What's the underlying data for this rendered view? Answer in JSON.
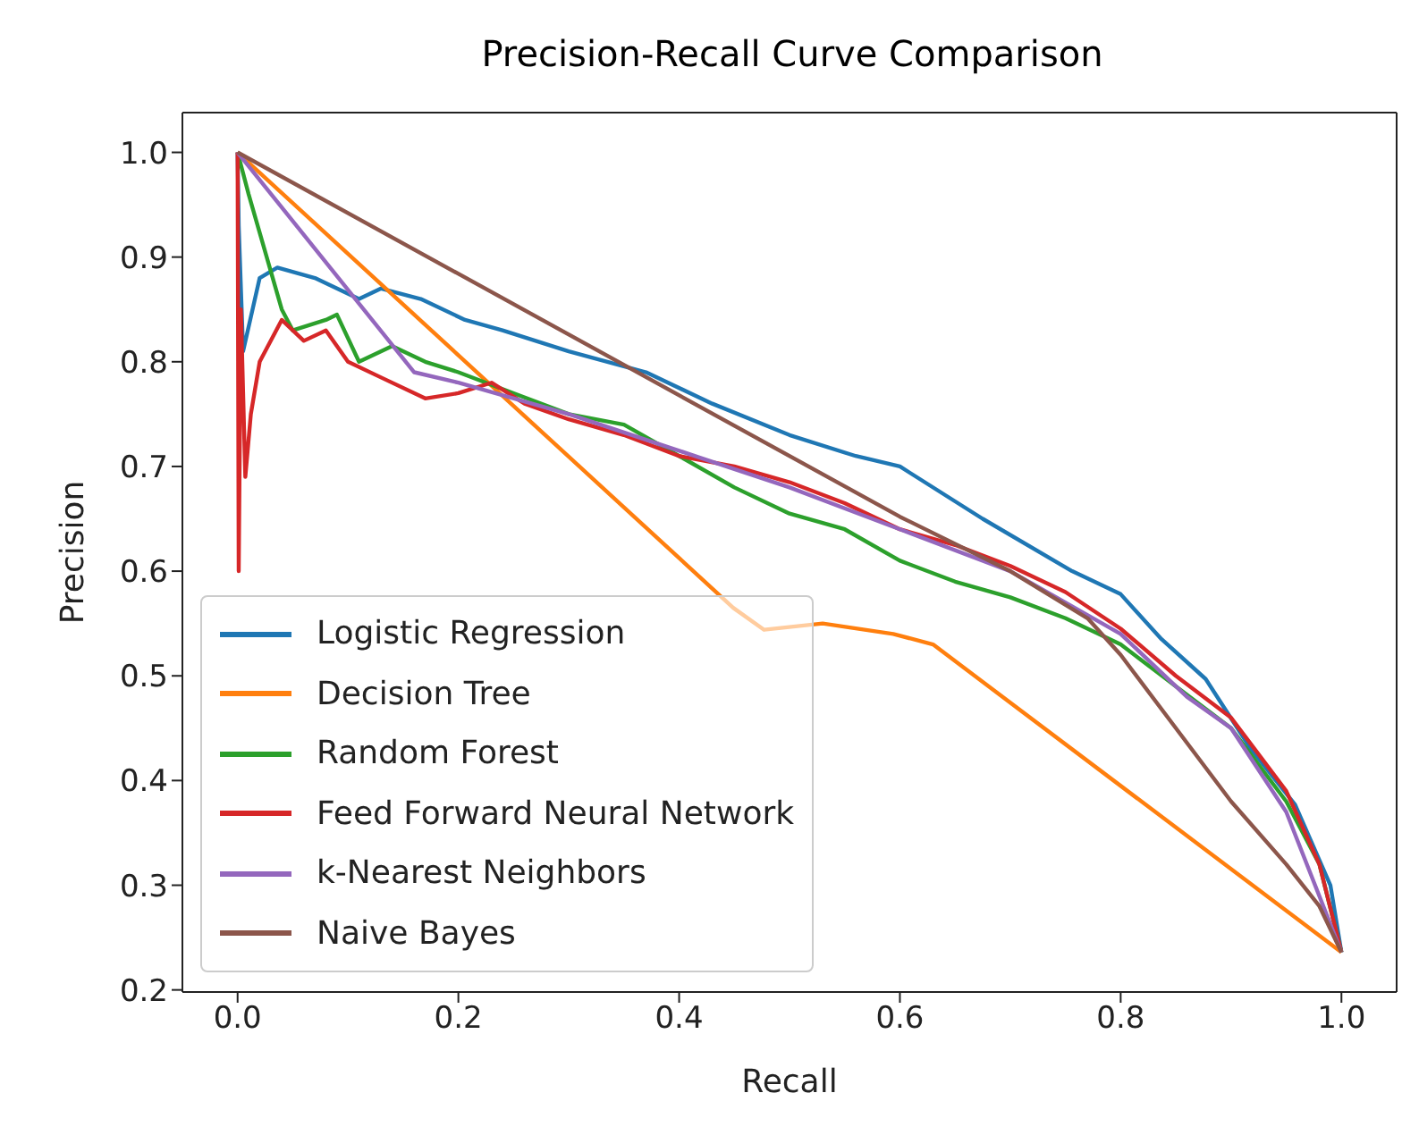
{
  "chart_data": {
    "type": "line",
    "title": "Precision-Recall Curve Comparison",
    "xlabel": "Recall",
    "ylabel": "Precision",
    "xlim": [
      -0.05,
      1.05
    ],
    "ylim": [
      0.198,
      1.038
    ],
    "xticks": [
      {
        "value": 0,
        "label": "0.0"
      },
      0.2,
      0.4,
      0.6,
      0.8,
      {
        "value": 1,
        "label": "1.0"
      }
    ],
    "yticks": [
      0.2,
      0.3,
      0.4,
      0.5,
      0.6,
      0.7,
      0.8,
      0.9,
      {
        "value": 1,
        "label": "1.0"
      }
    ],
    "grid": false,
    "legend": "bottom left",
    "marker": "none",
    "line_style": "solid",
    "series": [
      {
        "name": "Logistic Regression",
        "color": "#1f77b4",
        "x": [
          0,
          0.001,
          0.005,
          0.02,
          0.036,
          0.07,
          0.11,
          0.13,
          0.166,
          0.206,
          0.24,
          0.3,
          0.37,
          0.43,
          0.5,
          0.56,
          0.6,
          0.675,
          0.756,
          0.8,
          0.837,
          0.877,
          0.918,
          0.958,
          0.99,
          1.0
        ],
        "values": [
          1.0,
          0.93,
          0.81,
          0.88,
          0.89,
          0.88,
          0.86,
          0.87,
          0.86,
          0.84,
          0.83,
          0.81,
          0.79,
          0.76,
          0.73,
          0.71,
          0.7,
          0.65,
          0.6,
          0.578,
          0.535,
          0.497,
          0.43,
          0.377,
          0.3,
          0.236
        ]
      },
      {
        "name": "Decision Tree",
        "color": "#ff7f0e",
        "x": [
          0,
          0.449,
          0.477,
          0.53,
          0.594,
          0.63,
          1.0
        ],
        "values": [
          1.0,
          0.565,
          0.544,
          0.55,
          0.54,
          0.53,
          0.236
        ]
      },
      {
        "name": "Random Forest",
        "color": "#2ca02c",
        "x": [
          0,
          0.01,
          0.04,
          0.05,
          0.08,
          0.09,
          0.11,
          0.14,
          0.17,
          0.2,
          0.25,
          0.3,
          0.35,
          0.4,
          0.45,
          0.5,
          0.55,
          0.6,
          0.65,
          0.7,
          0.75,
          0.8,
          0.85,
          0.9,
          0.95,
          0.98,
          1.0
        ],
        "values": [
          1.0,
          0.96,
          0.85,
          0.83,
          0.84,
          0.845,
          0.8,
          0.815,
          0.8,
          0.79,
          0.77,
          0.75,
          0.74,
          0.71,
          0.68,
          0.655,
          0.64,
          0.61,
          0.59,
          0.575,
          0.555,
          0.53,
          0.49,
          0.45,
          0.38,
          0.32,
          0.236
        ]
      },
      {
        "name": "Feed Forward Neural Network",
        "color": "#d62728",
        "x": [
          0,
          0.001,
          0.003,
          0.007,
          0.012,
          0.02,
          0.04,
          0.06,
          0.08,
          0.1,
          0.13,
          0.17,
          0.2,
          0.23,
          0.26,
          0.3,
          0.35,
          0.4,
          0.45,
          0.5,
          0.55,
          0.6,
          0.65,
          0.7,
          0.75,
          0.8,
          0.85,
          0.9,
          0.95,
          0.98,
          1.0
        ],
        "values": [
          1.0,
          0.6,
          0.85,
          0.69,
          0.75,
          0.8,
          0.84,
          0.82,
          0.83,
          0.8,
          0.785,
          0.765,
          0.77,
          0.78,
          0.76,
          0.745,
          0.73,
          0.71,
          0.7,
          0.685,
          0.665,
          0.64,
          0.625,
          0.605,
          0.58,
          0.545,
          0.5,
          0.46,
          0.39,
          0.32,
          0.236
        ]
      },
      {
        "name": "k-Nearest Neighbors",
        "color": "#9467bd",
        "x": [
          0,
          0.16,
          0.2,
          0.3,
          0.4,
          0.5,
          0.6,
          0.7,
          0.8,
          0.86,
          0.9,
          0.95,
          1.0
        ],
        "values": [
          1.0,
          0.79,
          0.78,
          0.75,
          0.715,
          0.68,
          0.64,
          0.6,
          0.54,
          0.48,
          0.45,
          0.37,
          0.236
        ]
      },
      {
        "name": "Naive Bayes",
        "color": "#8c564b",
        "x": [
          0,
          0.6,
          0.7,
          0.77,
          0.8,
          0.85,
          0.9,
          0.95,
          0.98,
          1.0
        ],
        "values": [
          1.0,
          0.652,
          0.6,
          0.555,
          0.52,
          0.45,
          0.38,
          0.32,
          0.28,
          0.236
        ]
      }
    ]
  }
}
